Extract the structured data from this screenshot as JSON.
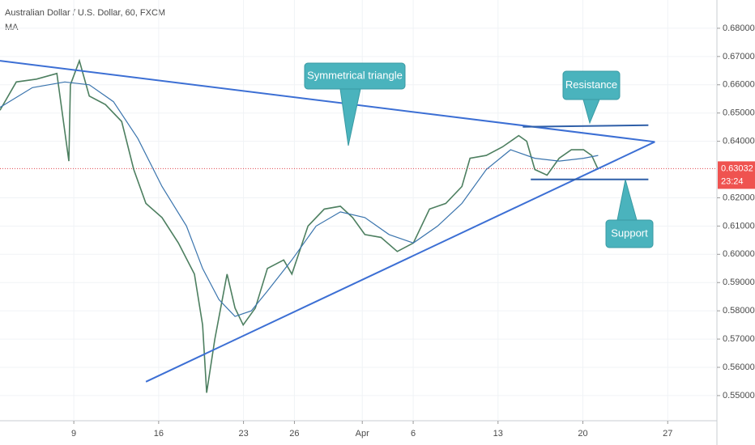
{
  "chart_data": {
    "type": "line",
    "title": "Australian Dollar / U.S. Dollar, 60, FXCM",
    "legend": "MA",
    "xlim": [
      -4.35,
      37.9
    ],
    "ylim": [
      0.5411,
      0.69
    ],
    "xticks": [
      {
        "value": 0,
        "label": "9"
      },
      {
        "value": 5,
        "label": "16"
      },
      {
        "value": 10,
        "label": "23"
      },
      {
        "value": 13,
        "label": "26"
      },
      {
        "value": 17,
        "label": "Apr"
      },
      {
        "value": 20,
        "label": "6"
      },
      {
        "value": 25,
        "label": "13"
      },
      {
        "value": 30,
        "label": "20"
      },
      {
        "value": 35,
        "label": "27"
      }
    ],
    "yticks": [
      {
        "value": 0.55,
        "label": "0.55000"
      },
      {
        "value": 0.56,
        "label": "0.56000"
      },
      {
        "value": 0.57,
        "label": "0.57000"
      },
      {
        "value": 0.58,
        "label": "0.58000"
      },
      {
        "value": 0.59,
        "label": "0.59000"
      },
      {
        "value": 0.6,
        "label": "0.60000"
      },
      {
        "value": 0.61,
        "label": "0.61000"
      },
      {
        "value": 0.62,
        "label": "0.62000"
      },
      {
        "value": 0.64,
        "label": "0.64000"
      },
      {
        "value": 0.65,
        "label": "0.65000"
      },
      {
        "value": 0.66,
        "label": "0.66000"
      },
      {
        "value": 0.67,
        "label": "0.67000"
      },
      {
        "value": 0.68,
        "label": "0.68000"
      }
    ],
    "grid": true,
    "series": [
      {
        "color": "#4d7f60",
        "x": [
          -4.35,
          -3.39,
          -2.2,
          -1.0,
          -0.29,
          -0.2,
          0.33,
          0.91,
          1.86,
          2.82,
          3.53,
          4.25,
          5.2,
          6.16,
          7.11,
          7.59,
          7.83,
          8.31,
          9.03,
          9.5,
          9.98,
          10.7,
          11.41,
          12.37,
          12.85,
          13.8,
          14.76,
          15.71,
          16.43,
          17.15,
          18.1,
          19.06,
          20.01,
          20.96,
          21.92,
          22.87,
          23.35,
          24.31,
          25.26,
          26.22,
          26.69,
          27.17,
          27.89,
          28.6,
          29.32,
          30.04,
          30.52,
          30.9
        ],
        "values": [
          0.651,
          0.661,
          0.662,
          0.664,
          0.633,
          0.66,
          0.6685,
          0.656,
          0.653,
          0.647,
          0.63,
          0.618,
          0.613,
          0.604,
          0.593,
          0.575,
          0.551,
          0.57,
          0.593,
          0.581,
          0.575,
          0.581,
          0.595,
          0.598,
          0.593,
          0.61,
          0.616,
          0.617,
          0.613,
          0.607,
          0.606,
          0.601,
          0.604,
          0.616,
          0.618,
          0.624,
          0.634,
          0.635,
          0.638,
          0.642,
          0.64,
          0.63,
          0.628,
          0.634,
          0.637,
          0.637,
          0.635,
          0.63
        ]
      },
      {
        "name": "MA",
        "color": "#3a74ad",
        "x": [
          -4.35,
          -2.44,
          -0.53,
          0.91,
          2.34,
          3.77,
          5.2,
          6.64,
          7.59,
          8.55,
          9.5,
          10.46,
          11.41,
          12.85,
          14.28,
          15.71,
          17.15,
          18.58,
          20.01,
          21.44,
          22.87,
          24.31,
          25.74,
          27.17,
          28.6,
          30.04,
          30.9
        ],
        "values": [
          0.652,
          0.659,
          0.661,
          0.66,
          0.654,
          0.641,
          0.624,
          0.61,
          0.595,
          0.584,
          0.578,
          0.58,
          0.587,
          0.598,
          0.61,
          0.615,
          0.613,
          0.607,
          0.604,
          0.61,
          0.618,
          0.63,
          0.637,
          0.634,
          0.633,
          0.634,
          0.635
        ]
      }
    ],
    "trendlines": [
      {
        "x": [
          -4.35,
          34.24
        ],
        "y": [
          0.6685,
          0.6398
        ]
      },
      {
        "x": [
          4.25,
          34.24
        ],
        "y": [
          0.5549,
          0.6398
        ]
      },
      {
        "x": [
          26.46,
          33.86
        ],
        "y": [
          0.6451,
          0.6457
        ]
      },
      {
        "x": [
          26.93,
          33.86
        ],
        "y": [
          0.6265,
          0.6265
        ]
      }
    ],
    "annotations": [
      "Symmetrical triangle",
      "Resistance",
      "Support"
    ],
    "last_price": 0.63032,
    "countdown": "23:24"
  }
}
